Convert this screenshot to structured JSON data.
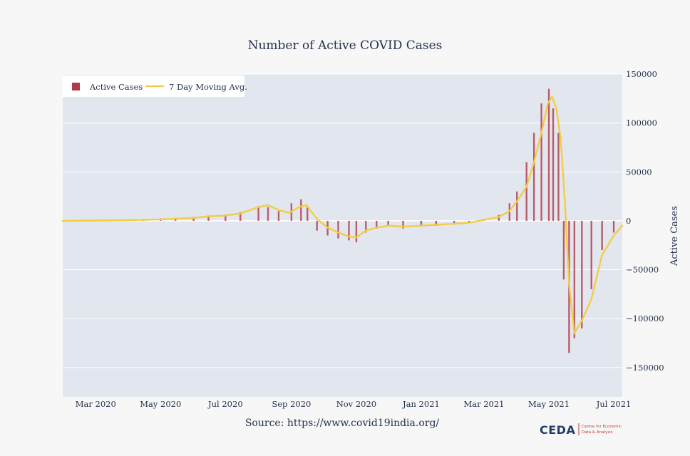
{
  "chart_data": {
    "type": "bar",
    "title": "Number of Active COVID Cases",
    "ylabel": "Active Cases",
    "xlabel": "",
    "ylim": [
      -180000,
      150000
    ],
    "yticks": [
      150000,
      100000,
      50000,
      0,
      -50000,
      -100000,
      -150000
    ],
    "ytick_labels": [
      "150000",
      "100000",
      "50000",
      "0",
      "−50000",
      "−100000",
      "−150000"
    ],
    "x_range": [
      "2020-01-30",
      "2021-07-09"
    ],
    "xticks": [
      "2020-03-01",
      "2020-05-01",
      "2020-07-01",
      "2020-09-01",
      "2020-11-01",
      "2021-01-01",
      "2021-03-01",
      "2021-05-01",
      "2021-07-01"
    ],
    "xtick_labels": [
      "Mar 2020",
      "May 2020",
      "Jul 2020",
      "Sep 2020",
      "Nov 2020",
      "Jan 2021",
      "Mar 2021",
      "May 2021",
      "Jul 2021"
    ],
    "legend_position": "top-left",
    "grid": true,
    "series": [
      {
        "name": "Active Cases",
        "kind": "bar",
        "color": "#b03a48",
        "x": [
          "2020-03-15",
          "2020-04-01",
          "2020-04-15",
          "2020-05-01",
          "2020-05-15",
          "2020-06-01",
          "2020-06-15",
          "2020-07-01",
          "2020-07-15",
          "2020-08-01",
          "2020-08-10",
          "2020-08-20",
          "2020-09-01",
          "2020-09-10",
          "2020-09-16",
          "2020-09-25",
          "2020-10-05",
          "2020-10-15",
          "2020-10-25",
          "2020-11-01",
          "2020-11-10",
          "2020-11-20",
          "2020-12-01",
          "2020-12-15",
          "2021-01-01",
          "2021-01-15",
          "2021-02-01",
          "2021-02-15",
          "2021-03-01",
          "2021-03-15",
          "2021-03-25",
          "2021-04-01",
          "2021-04-10",
          "2021-04-17",
          "2021-04-24",
          "2021-05-01",
          "2021-05-05",
          "2021-05-10",
          "2021-05-15",
          "2021-05-20",
          "2021-05-25",
          "2021-06-01",
          "2021-06-10",
          "2021-06-20",
          "2021-07-01"
        ],
        "values": [
          200,
          800,
          1500,
          2500,
          3000,
          4000,
          5500,
          6500,
          9000,
          15000,
          14000,
          10000,
          18000,
          22000,
          15000,
          -10000,
          -15000,
          -18000,
          -20000,
          -22000,
          -12000,
          -8000,
          -5000,
          -8000,
          -6000,
          -5000,
          -3000,
          -2000,
          1000,
          6000,
          18000,
          30000,
          60000,
          90000,
          120000,
          135000,
          115000,
          90000,
          -60000,
          -135000,
          -120000,
          -110000,
          -70000,
          -30000,
          -12000
        ]
      },
      {
        "name": "7 Day Moving Avg.",
        "kind": "line",
        "color": "#f2cd42",
        "x": [
          "2020-01-30",
          "2020-03-01",
          "2020-04-01",
          "2020-05-01",
          "2020-06-01",
          "2020-06-15",
          "2020-07-01",
          "2020-07-15",
          "2020-08-01",
          "2020-08-10",
          "2020-08-20",
          "2020-08-30",
          "2020-09-08",
          "2020-09-15",
          "2020-09-25",
          "2020-10-05",
          "2020-10-15",
          "2020-10-25",
          "2020-11-01",
          "2020-11-10",
          "2020-11-20",
          "2020-12-01",
          "2020-12-15",
          "2021-01-01",
          "2021-01-15",
          "2021-02-01",
          "2021-02-15",
          "2021-03-01",
          "2021-03-15",
          "2021-03-25",
          "2021-04-01",
          "2021-04-10",
          "2021-04-17",
          "2021-04-24",
          "2021-04-30",
          "2021-05-04",
          "2021-05-08",
          "2021-05-12",
          "2021-05-16",
          "2021-05-20",
          "2021-05-25",
          "2021-06-01",
          "2021-06-10",
          "2021-06-20",
          "2021-07-01",
          "2021-07-09"
        ],
        "values": [
          0,
          300,
          700,
          1500,
          3000,
          4500,
          5500,
          7500,
          14000,
          16000,
          11000,
          8000,
          14000,
          16000,
          2000,
          -7000,
          -12000,
          -16000,
          -17000,
          -10000,
          -7000,
          -5000,
          -6000,
          -5000,
          -4000,
          -3000,
          -2000,
          1000,
          4000,
          10000,
          20000,
          35000,
          60000,
          90000,
          120000,
          127000,
          115000,
          85000,
          20000,
          -65000,
          -115000,
          -102000,
          -80000,
          -35000,
          -15000,
          -5000
        ]
      }
    ]
  },
  "source_text": "Source: https://www.covid19india.org/",
  "logo": {
    "word": "CEDA",
    "tagline_line1": "Centre for Economic",
    "tagline_line2": "Data & Analysis"
  },
  "colors": {
    "plot_bg": "#e2e7ef",
    "page_bg": "#f7f7f7",
    "bar": "#b03a48",
    "line": "#f2cd42",
    "text": "#1f2f4b"
  }
}
